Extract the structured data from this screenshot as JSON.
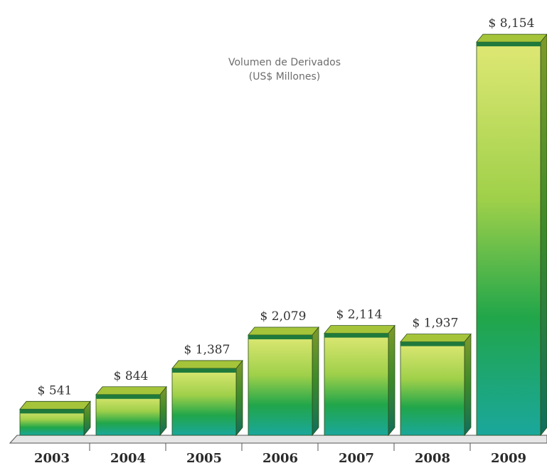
{
  "chart_data": {
    "type": "bar3d",
    "title": "Volumen de Derivados",
    "subtitle": "(US$ Millones)",
    "categories": [
      "2003",
      "2004",
      "2005",
      "2006",
      "2007",
      "2008",
      "2009"
    ],
    "values": [
      541,
      844,
      1387,
      2079,
      2114,
      1937,
      8154
    ],
    "value_labels": [
      "$ 541",
      "$ 844",
      "$ 1,387",
      "$ 2,079",
      "$ 2,114",
      "$ 1,937",
      "$ 8,154"
    ],
    "ylim": [
      0,
      8200
    ],
    "color": "#7cc142"
  }
}
